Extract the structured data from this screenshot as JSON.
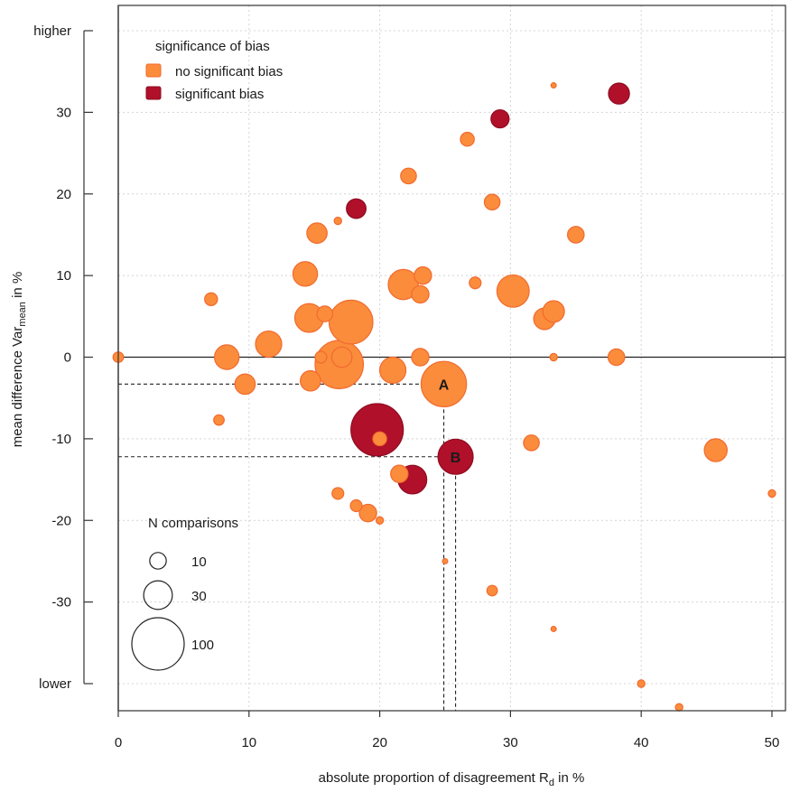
{
  "chart_data": {
    "type": "scatter",
    "subtype": "bubble",
    "xlabel_main": "absolute proportion of disagreement R",
    "xlabel_sub": "d",
    "xlabel_tail": " in %",
    "ylabel_main": "mean difference Var",
    "ylabel_sub": "mean",
    "ylabel_tail": " in %",
    "xlim": [
      0,
      50
    ],
    "ylim": [
      -43,
      40
    ],
    "x_ticks": [
      0,
      10,
      20,
      30,
      40,
      50
    ],
    "y_ticks": [
      {
        "value": 40,
        "label": "higher"
      },
      {
        "value": 30,
        "label": "30"
      },
      {
        "value": 20,
        "label": "20"
      },
      {
        "value": 10,
        "label": "10"
      },
      {
        "value": 0,
        "label": "0"
      },
      {
        "value": -10,
        "label": "-10"
      },
      {
        "value": -20,
        "label": "-20"
      },
      {
        "value": -30,
        "label": "-30"
      },
      {
        "value": -40,
        "label": "lower"
      }
    ],
    "grid": true,
    "colors": {
      "no_significant_bias": "#fb8c3c",
      "no_significant_bias_edge": "#f26a2e",
      "significant_bias": "#b0102a",
      "significant_bias_edge": "#8e0c22"
    },
    "legend_color": {
      "title": "significance of bias",
      "placement": "top-left",
      "items": [
        {
          "key": "no_significant_bias",
          "label": "no significant bias"
        },
        {
          "key": "significant_bias",
          "label": "significant bias"
        }
      ]
    },
    "legend_size": {
      "title": "N comparisons",
      "placement": "bottom-left",
      "items": [
        {
          "n": 10,
          "label": "10"
        },
        {
          "n": 30,
          "label": "30"
        },
        {
          "n": 100,
          "label": "100"
        }
      ]
    },
    "annotations": [
      {
        "label": "A",
        "x": 24.9,
        "y": -3.3
      },
      {
        "label": "B",
        "x": 25.8,
        "y": -12.2
      }
    ],
    "points": [
      {
        "x": 0,
        "y": 0,
        "n": 4,
        "sig": false
      },
      {
        "x": 7.1,
        "y": 7.1,
        "n": 6,
        "sig": false
      },
      {
        "x": 7.7,
        "y": -7.7,
        "n": 4,
        "sig": false
      },
      {
        "x": 8.3,
        "y": 0,
        "n": 22,
        "sig": false
      },
      {
        "x": 9.7,
        "y": -3.3,
        "n": 15,
        "sig": false
      },
      {
        "x": 11.5,
        "y": 1.6,
        "n": 25,
        "sig": false
      },
      {
        "x": 14.3,
        "y": 10.2,
        "n": 22,
        "sig": false
      },
      {
        "x": 14.6,
        "y": 4.8,
        "n": 30,
        "sig": false
      },
      {
        "x": 14.7,
        "y": -2.9,
        "n": 15,
        "sig": false
      },
      {
        "x": 15.2,
        "y": 15.2,
        "n": 15,
        "sig": false
      },
      {
        "x": 15.5,
        "y": 0,
        "n": 5,
        "sig": false
      },
      {
        "x": 15.8,
        "y": 5.3,
        "n": 9,
        "sig": false
      },
      {
        "x": 16.8,
        "y": 16.7,
        "n": 2,
        "sig": false
      },
      {
        "x": 16.8,
        "y": -16.7,
        "n": 5,
        "sig": false
      },
      {
        "x": 16.9,
        "y": -0.9,
        "n": 85,
        "sig": false
      },
      {
        "x": 17.1,
        "y": 0,
        "n": 15,
        "sig": false
      },
      {
        "x": 17.8,
        "y": 4.3,
        "n": 70,
        "sig": false
      },
      {
        "x": 18.2,
        "y": 18.2,
        "n": 14,
        "sig": true
      },
      {
        "x": 18.2,
        "y": -18.2,
        "n": 5,
        "sig": false
      },
      {
        "x": 19.1,
        "y": -19.1,
        "n": 11,
        "sig": false
      },
      {
        "x": 19.8,
        "y": -8.9,
        "n": 100,
        "sig": true
      },
      {
        "x": 20,
        "y": -10,
        "n": 7,
        "sig": false
      },
      {
        "x": 20,
        "y": -20,
        "n": 2,
        "sig": false
      },
      {
        "x": 21,
        "y": -1.6,
        "n": 25,
        "sig": false
      },
      {
        "x": 21.5,
        "y": -14.3,
        "n": 11,
        "sig": false
      },
      {
        "x": 21.8,
        "y": 8.9,
        "n": 33,
        "sig": false
      },
      {
        "x": 22.2,
        "y": 22.2,
        "n": 9,
        "sig": false
      },
      {
        "x": 22.5,
        "y": -15,
        "n": 30,
        "sig": true
      },
      {
        "x": 23.1,
        "y": 0,
        "n": 11,
        "sig": false
      },
      {
        "x": 23.1,
        "y": 7.7,
        "n": 11,
        "sig": false
      },
      {
        "x": 23.3,
        "y": 10,
        "n": 11,
        "sig": false
      },
      {
        "x": 24.9,
        "y": -3.3,
        "n": 75,
        "sig": false
      },
      {
        "x": 25,
        "y": -25,
        "n": 1,
        "sig": false
      },
      {
        "x": 25.8,
        "y": -12.2,
        "n": 45,
        "sig": true
      },
      {
        "x": 26.7,
        "y": 26.7,
        "n": 7,
        "sig": false
      },
      {
        "x": 27.3,
        "y": 9.1,
        "n": 5,
        "sig": false
      },
      {
        "x": 28.6,
        "y": -28.6,
        "n": 4,
        "sig": false
      },
      {
        "x": 28.6,
        "y": 19,
        "n": 9,
        "sig": false
      },
      {
        "x": 29.2,
        "y": 29.2,
        "n": 12,
        "sig": true
      },
      {
        "x": 30.2,
        "y": 8.1,
        "n": 38,
        "sig": false
      },
      {
        "x": 31.6,
        "y": -10.5,
        "n": 9,
        "sig": false
      },
      {
        "x": 32.6,
        "y": 4.7,
        "n": 17,
        "sig": false
      },
      {
        "x": 33.3,
        "y": 33.3,
        "n": 1,
        "sig": false
      },
      {
        "x": 33.3,
        "y": 5.6,
        "n": 17,
        "sig": false
      },
      {
        "x": 33.3,
        "y": 0,
        "n": 2,
        "sig": false
      },
      {
        "x": 33.3,
        "y": -33.3,
        "n": 1,
        "sig": false
      },
      {
        "x": 35,
        "y": 15,
        "n": 10,
        "sig": false
      },
      {
        "x": 38.1,
        "y": 0,
        "n": 10,
        "sig": false
      },
      {
        "x": 38.3,
        "y": 32.3,
        "n": 16,
        "sig": true
      },
      {
        "x": 40,
        "y": -40,
        "n": 2,
        "sig": false
      },
      {
        "x": 42.9,
        "y": -42.9,
        "n": 2,
        "sig": false
      },
      {
        "x": 45.7,
        "y": -11.4,
        "n": 19,
        "sig": false
      },
      {
        "x": 50,
        "y": -16.7,
        "n": 2,
        "sig": false
      }
    ]
  }
}
